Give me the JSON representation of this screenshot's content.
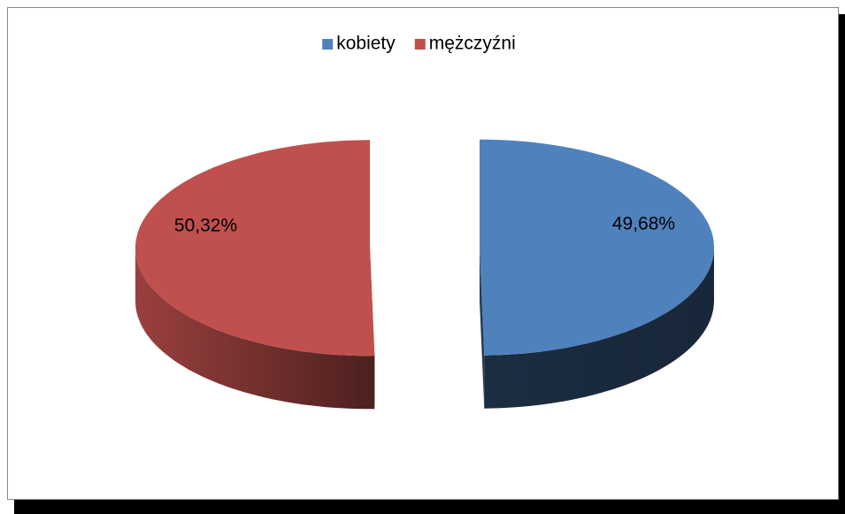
{
  "chart_data": {
    "type": "pie",
    "three_d": true,
    "exploded": true,
    "categories": [
      "kobiety",
      "mężczyźni"
    ],
    "values": [
      49.68,
      50.32
    ],
    "value_labels": [
      "49,68%",
      "50,32%"
    ],
    "colors": [
      "#4f81bd",
      "#c0504d"
    ],
    "legend": "top"
  }
}
